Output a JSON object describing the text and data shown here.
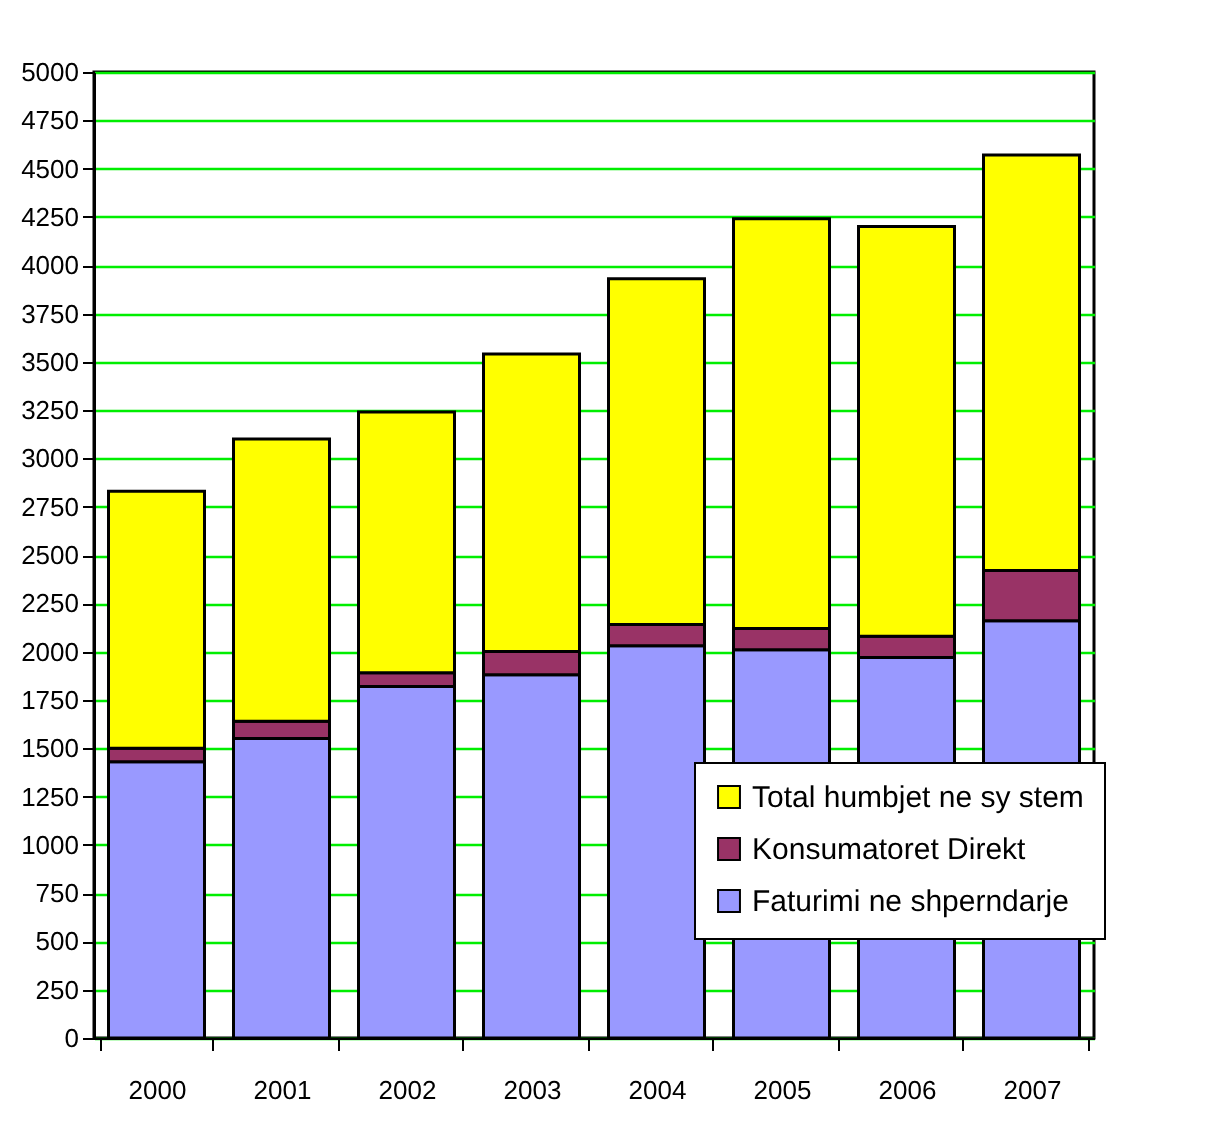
{
  "chart_data": {
    "type": "bar",
    "stacked": true,
    "categories": [
      "2000",
      "2001",
      "2002",
      "2003",
      "2004",
      "2005",
      "2006",
      "2007"
    ],
    "series": [
      {
        "name": "Faturimi ne shperndarje",
        "color": "#9999ff",
        "values": [
          1430,
          1550,
          1820,
          1880,
          2030,
          2010,
          1970,
          2160
        ]
      },
      {
        "name": "Konsumatoret Direkt",
        "color": "#993366",
        "values": [
          70,
          90,
          70,
          120,
          110,
          110,
          110,
          260
        ]
      },
      {
        "name": "Total humbjet ne sy stem",
        "color": "#ffff00",
        "values": [
          1330,
          1460,
          1350,
          1540,
          1790,
          2120,
          2120,
          2150
        ]
      }
    ],
    "ylim": [
      0,
      5000
    ],
    "yticks": [
      0,
      250,
      500,
      750,
      1000,
      1250,
      1500,
      1750,
      2000,
      2250,
      2500,
      2750,
      3000,
      3250,
      3500,
      3750,
      4000,
      4250,
      4500,
      4750,
      5000
    ],
    "grid": "y",
    "legend": "bottom right"
  }
}
